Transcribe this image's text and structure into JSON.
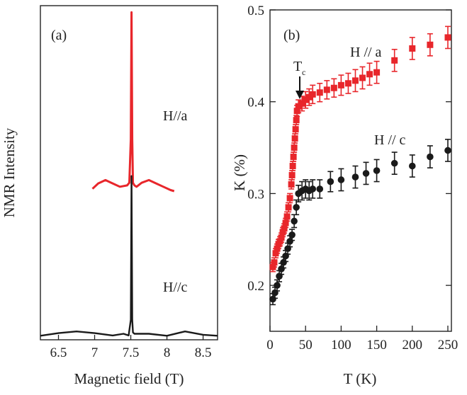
{
  "chart_data": [
    {
      "panel_label": "(a)",
      "type": "line",
      "xlabel": "Magnetic field (T)",
      "ylabel": "NMR Intensity",
      "xlim": [
        6.25,
        8.7
      ],
      "xticks": [
        "6.5",
        "7",
        "7.5",
        "8",
        "8.5"
      ],
      "xtick_values": [
        6.5,
        7,
        7.5,
        8,
        8.5
      ],
      "series": [
        {
          "name": "H//a",
          "color": "#e8262b",
          "x": [
            6.97,
            7.05,
            7.15,
            7.25,
            7.35,
            7.45,
            7.48,
            7.5,
            7.51,
            7.52,
            7.53,
            7.55,
            7.58,
            7.65,
            7.75,
            7.85,
            7.95,
            8.05,
            8.1
          ],
          "y": [
            0.452,
            0.468,
            0.478,
            0.468,
            0.458,
            0.462,
            0.47,
            0.6,
            0.98,
            0.6,
            0.47,
            0.462,
            0.458,
            0.47,
            0.478,
            0.468,
            0.458,
            0.448,
            0.445
          ]
        },
        {
          "name": "H//c",
          "color": "#1a1a1a",
          "x": [
            6.25,
            6.5,
            6.75,
            7.0,
            7.25,
            7.4,
            7.47,
            7.5,
            7.51,
            7.52,
            7.53,
            7.55,
            7.6,
            7.75,
            8.0,
            8.25,
            8.5,
            8.7
          ],
          "y": [
            0.012,
            0.02,
            0.025,
            0.02,
            0.013,
            0.018,
            0.013,
            0.06,
            0.49,
            0.06,
            0.022,
            0.018,
            0.018,
            0.018,
            0.012,
            0.025,
            0.015,
            0.012
          ]
        }
      ]
    },
    {
      "panel_label": "(b)",
      "type": "scatter",
      "xlabel": "T (K)",
      "ylabel": "K (%)",
      "xlim": [
        0,
        255
      ],
      "ylim": [
        0.15,
        0.5
      ],
      "xticks": [
        "0",
        "50",
        "100",
        "150",
        "200",
        "250"
      ],
      "xtick_values": [
        0,
        50,
        100,
        150,
        200,
        250
      ],
      "yticks": [
        "0.2",
        "0.3",
        "0.4",
        "0.5"
      ],
      "ytick_values": [
        0.2,
        0.3,
        0.4,
        0.5
      ],
      "annotation": {
        "text": "T",
        "subscript": "c",
        "x": 37
      },
      "series": [
        {
          "name": "H // a",
          "color": "#e8262b",
          "marker": "square",
          "x": [
            4,
            6,
            8,
            10,
            12,
            14,
            16,
            18,
            20,
            22,
            24,
            26,
            28,
            30,
            31,
            32,
            33,
            34,
            35,
            36,
            37,
            38,
            40,
            45,
            50,
            55,
            60,
            70,
            80,
            90,
            100,
            110,
            120,
            130,
            140,
            150,
            175,
            200,
            225,
            250
          ],
          "y": [
            0.22,
            0.225,
            0.235,
            0.24,
            0.245,
            0.248,
            0.252,
            0.258,
            0.262,
            0.268,
            0.275,
            0.285,
            0.295,
            0.31,
            0.32,
            0.33,
            0.34,
            0.35,
            0.36,
            0.37,
            0.38,
            0.39,
            0.395,
            0.398,
            0.402,
            0.405,
            0.408,
            0.41,
            0.413,
            0.415,
            0.418,
            0.42,
            0.423,
            0.426,
            0.43,
            0.432,
            0.445,
            0.458,
            0.462,
            0.47
          ],
          "err": [
            0.005,
            0.005,
            0.005,
            0.005,
            0.005,
            0.005,
            0.005,
            0.005,
            0.005,
            0.005,
            0.005,
            0.005,
            0.005,
            0.005,
            0.005,
            0.005,
            0.005,
            0.005,
            0.005,
            0.005,
            0.005,
            0.006,
            0.007,
            0.008,
            0.009,
            0.009,
            0.01,
            0.01,
            0.01,
            0.01,
            0.011,
            0.011,
            0.012,
            0.012,
            0.012,
            0.012,
            0.012,
            0.012,
            0.012,
            0.012
          ]
        },
        {
          "name": "H // c",
          "color": "#1a1a1a",
          "marker": "circle",
          "x": [
            4,
            7,
            10,
            13,
            16,
            19,
            22,
            25,
            28,
            31,
            34,
            37,
            40,
            45,
            50,
            55,
            60,
            70,
            85,
            100,
            120,
            135,
            150,
            175,
            200,
            225,
            250
          ],
          "y": [
            0.185,
            0.192,
            0.2,
            0.21,
            0.218,
            0.225,
            0.232,
            0.24,
            0.248,
            0.255,
            0.27,
            0.285,
            0.3,
            0.303,
            0.305,
            0.303,
            0.305,
            0.305,
            0.313,
            0.315,
            0.318,
            0.322,
            0.325,
            0.333,
            0.33,
            0.34,
            0.347
          ],
          "err": [
            0.006,
            0.006,
            0.006,
            0.006,
            0.006,
            0.006,
            0.006,
            0.006,
            0.006,
            0.006,
            0.007,
            0.008,
            0.009,
            0.01,
            0.01,
            0.01,
            0.01,
            0.01,
            0.011,
            0.012,
            0.012,
            0.012,
            0.012,
            0.012,
            0.012,
            0.012,
            0.012
          ]
        }
      ]
    }
  ]
}
